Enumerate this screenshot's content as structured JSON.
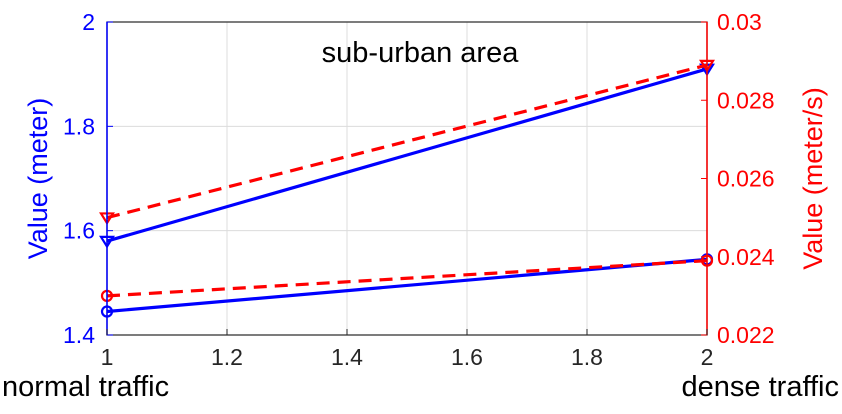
{
  "chart_data": {
    "type": "line",
    "title": "sub-urban area",
    "x": [
      1,
      2
    ],
    "xlim": [
      1,
      2
    ],
    "xticks": [
      "1",
      "1.2",
      "1.4",
      "1.6",
      "1.8",
      "2"
    ],
    "xtick_values": [
      1,
      1.2,
      1.4,
      1.6,
      1.8,
      2
    ],
    "x_end_labels": {
      "left": "normal traffic",
      "right": "dense traffic"
    },
    "y_left": {
      "label": "Value (meter)",
      "lim": [
        1.4,
        2.0
      ],
      "ticks": [
        "1.4",
        "1.6",
        "1.8",
        "2"
      ],
      "tick_values": [
        1.4,
        1.6,
        1.8,
        2.0
      ],
      "color": "#0000ff"
    },
    "y_right": {
      "label": "Value (meter/s)",
      "lim": [
        0.022,
        0.03
      ],
      "ticks": [
        "0.022",
        "0.024",
        "0.026",
        "0.028",
        "0.03"
      ],
      "tick_values": [
        0.022,
        0.024,
        0.026,
        0.028,
        0.03
      ],
      "color": "#ff0000"
    },
    "grid": true,
    "series": [
      {
        "axis": "left",
        "values": [
          1.58,
          1.91
        ],
        "color": "#0000ff",
        "line": "solid",
        "marker": "triangle-down"
      },
      {
        "axis": "left",
        "values": [
          1.445,
          1.545
        ],
        "color": "#0000ff",
        "line": "solid",
        "marker": "circle"
      },
      {
        "axis": "right",
        "values": [
          0.025,
          0.0289
        ],
        "color": "#ff0000",
        "line": "dashed",
        "marker": "triangle-down"
      },
      {
        "axis": "right",
        "values": [
          0.023,
          0.0239
        ],
        "color": "#ff0000",
        "line": "dashed",
        "marker": "circle"
      }
    ]
  }
}
